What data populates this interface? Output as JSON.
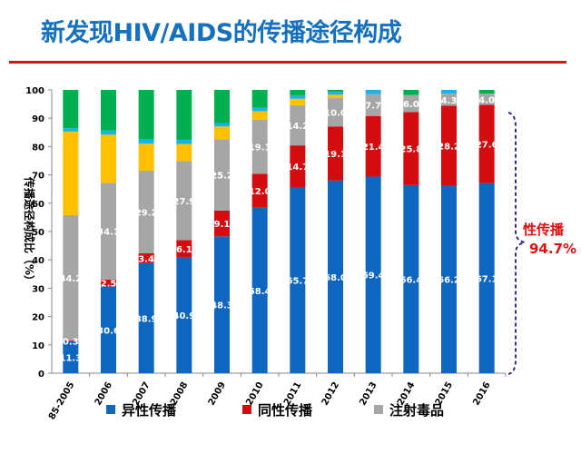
{
  "title": "新发现HIV/AIDS的传播途径构成",
  "annotation": {
    "label": "性传播",
    "value": "94.7%"
  },
  "colors": {
    "title": "#1570c0",
    "rule": "#d01818",
    "bracket": "#1a1a80",
    "annotation": "#e01010"
  },
  "chart_data": {
    "type": "bar",
    "stacked": true,
    "ylabel": "传播途径构成比（%）",
    "ylim": [
      0,
      100
    ],
    "yticks": [
      0,
      10,
      20,
      30,
      40,
      50,
      60,
      70,
      80,
      90,
      100
    ],
    "grid": false,
    "legend_position": "bottom",
    "categories": [
      "85-2005",
      "2006",
      "2007",
      "2008",
      "2009",
      "2010",
      "2011",
      "2012",
      "2013",
      "2014",
      "2015",
      "2016"
    ],
    "series": [
      {
        "name": "异性传播",
        "color": "#0f66c0",
        "labeled": true,
        "values": [
          11.3,
          30.6,
          38.9,
          40.9,
          48.3,
          58.4,
          65.7,
          68.0,
          69.4,
          66.4,
          66.2,
          67.1
        ]
      },
      {
        "name": "同性传播",
        "color": "#d40c10",
        "labeled": true,
        "values": [
          0.3,
          2.5,
          3.4,
          6.1,
          9.1,
          12.0,
          14.7,
          19.1,
          21.4,
          25.8,
          28.2,
          27.6
        ]
      },
      {
        "name": "注射毒品",
        "color": "#a6a6a6",
        "labeled": true,
        "values": [
          44.2,
          34.1,
          29.2,
          27.9,
          25.2,
          19.1,
          14.2,
          10.0,
          7.7,
          6.0,
          4.3,
          4.0
        ]
      },
      {
        "color": "#ffc000",
        "labeled": false,
        "values": [
          29.5,
          17.0,
          9.5,
          6.0,
          4.5,
          3.0,
          2.3,
          1.2,
          0,
          0,
          0,
          0
        ]
      },
      {
        "color": "#18b4e8",
        "labeled": false,
        "values": [
          1.2,
          1.5,
          1.5,
          1.5,
          1.2,
          1.2,
          1.2,
          1.0,
          1.5,
          0,
          1.3,
          0
        ]
      },
      {
        "color": "#00b050",
        "labeled": false,
        "values": [
          13.5,
          14.3,
          17.5,
          17.6,
          11.7,
          6.3,
          1.9,
          0.7,
          0,
          1.8,
          0,
          1.3
        ]
      }
    ]
  }
}
